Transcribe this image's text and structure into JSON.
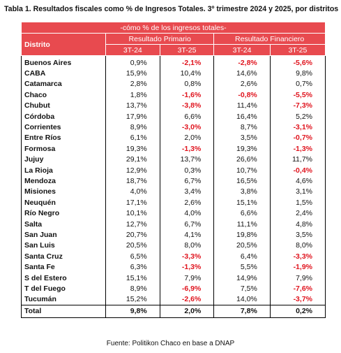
{
  "title": "Tabla 1. Resultados fiscales como % de Ingresos Totales. 3º trimestre 2024 y 2025, por distritos",
  "header": {
    "band": "-cómo % de los ingresos totales-",
    "district": "Distrito",
    "groups": [
      "Resultado Primario",
      "Resultado Financiero"
    ],
    "periods": [
      "3T-24",
      "3T-25",
      "3T-24",
      "3T-25"
    ]
  },
  "table": {
    "rows": [
      [
        "Buenos Aires",
        "0,9%",
        "-2,1%",
        "-2,8%",
        "-5,6%"
      ],
      [
        "CABA",
        "15,9%",
        "10,4%",
        "14,6%",
        "9,8%"
      ],
      [
        "Catamarca",
        "2,8%",
        "0,8%",
        "2,6%",
        "0,7%"
      ],
      [
        "Chaco",
        "1,8%",
        "-1,6%",
        "-0,8%",
        "-5,5%"
      ],
      [
        "Chubut",
        "13,7%",
        "-3,8%",
        "11,4%",
        "-7,3%"
      ],
      [
        "Córdoba",
        "17,9%",
        "6,6%",
        "16,4%",
        "5,2%"
      ],
      [
        "Corrientes",
        "8,9%",
        "-3,0%",
        "8,7%",
        "-3,1%"
      ],
      [
        "Entre Ríos",
        "6,1%",
        "2,0%",
        "3,5%",
        "-0,7%"
      ],
      [
        "Formosa",
        "19,3%",
        "-1,3%",
        "19,3%",
        "-1,3%"
      ],
      [
        "Jujuy",
        "29,1%",
        "13,7%",
        "26,6%",
        "11,7%"
      ],
      [
        "La Rioja",
        "12,9%",
        "0,3%",
        "10,7%",
        "-0,4%"
      ],
      [
        "Mendoza",
        "18,7%",
        "6,7%",
        "16,5%",
        "4,6%"
      ],
      [
        "Misiones",
        "4,0%",
        "3,4%",
        "3,8%",
        "3,1%"
      ],
      [
        "Neuquén",
        "17,1%",
        "2,6%",
        "15,1%",
        "1,5%"
      ],
      [
        "Río Negro",
        "10,1%",
        "4,0%",
        "6,6%",
        "2,4%"
      ],
      [
        "Salta",
        "12,7%",
        "6,7%",
        "11,1%",
        "4,8%"
      ],
      [
        "San Juan",
        "20,7%",
        "4,1%",
        "19,8%",
        "3,5%"
      ],
      [
        "San Luis",
        "20,5%",
        "8,0%",
        "20,5%",
        "8,0%"
      ],
      [
        "Santa Cruz",
        "6,5%",
        "-3,3%",
        "6,4%",
        "-3,3%"
      ],
      [
        "Santa Fe",
        "6,3%",
        "-1,3%",
        "5,5%",
        "-1,9%"
      ],
      [
        "S del Estero",
        "15,1%",
        "7,9%",
        "14,9%",
        "7,9%"
      ],
      [
        "T del Fuego",
        "8,9%",
        "-6,9%",
        "7,5%",
        "-7,6%"
      ],
      [
        "Tucumán",
        "15,2%",
        "-2,6%",
        "14,0%",
        "-3,7%"
      ]
    ],
    "total": [
      "Total",
      "9,8%",
      "2,0%",
      "7,8%",
      "0,2%"
    ]
  },
  "source": "Fuente: Politikon Chaco en base a DNAP"
}
